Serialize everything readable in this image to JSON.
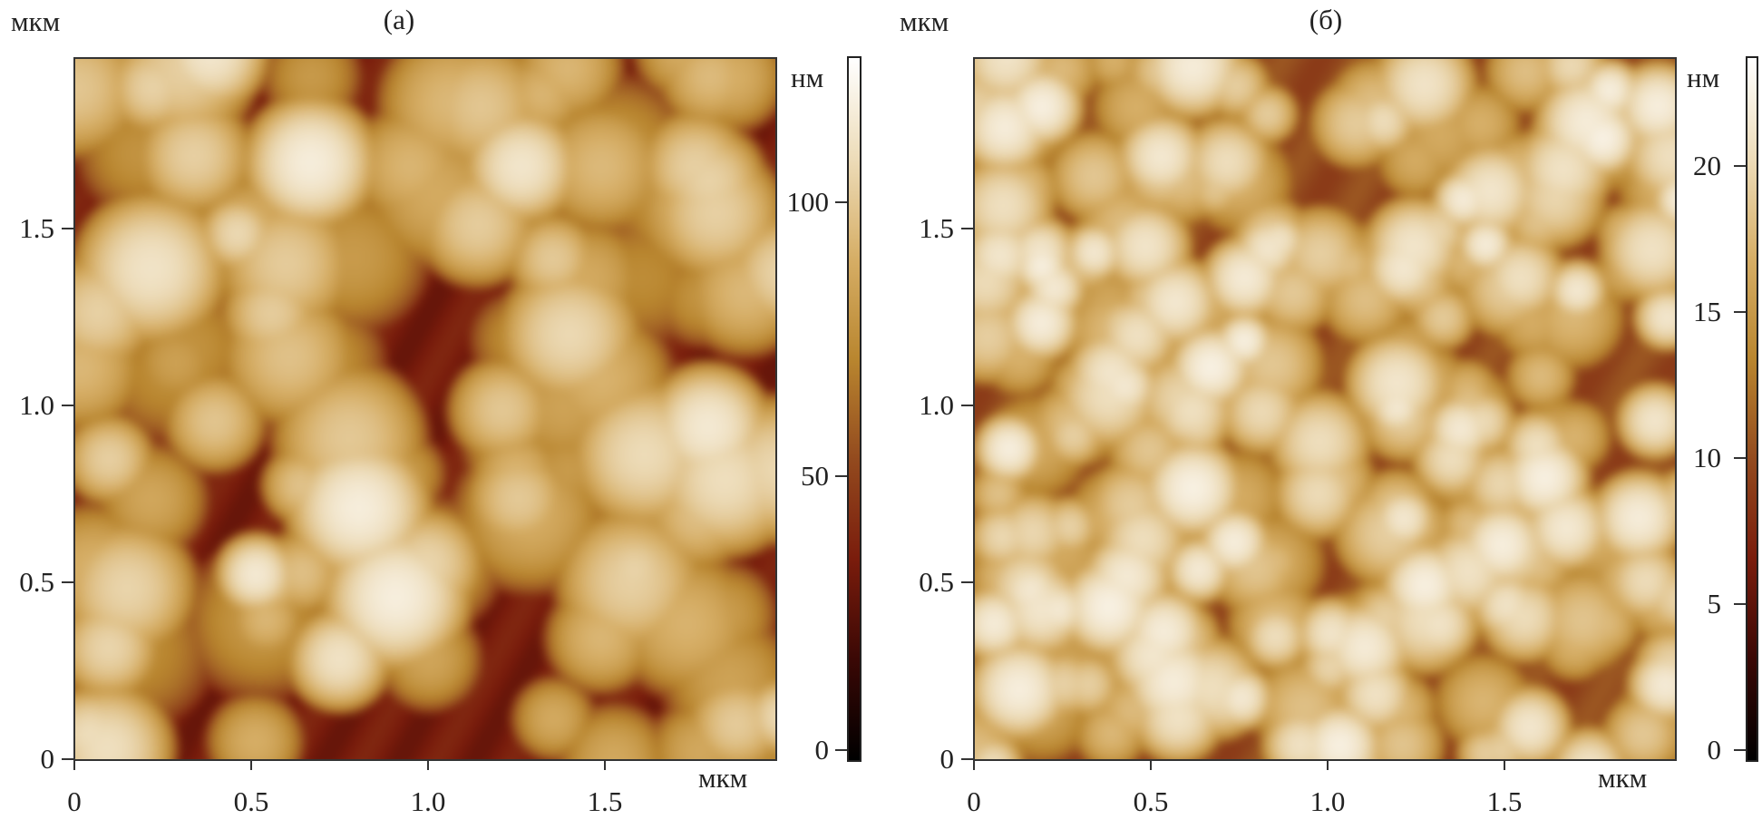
{
  "chart_data": [
    {
      "type": "heatmap",
      "panel_label": "(а)",
      "xlabel": "мкм",
      "ylabel": "мкм",
      "xlim": [
        0,
        1.98
      ],
      "ylim": [
        0,
        1.98
      ],
      "xticks": [
        "0",
        "0.5",
        "1.0",
        "1.5"
      ],
      "yticks": [
        "0",
        "0.5",
        "1.0",
        "1.5"
      ],
      "colorbar": {
        "label": "нм",
        "range": [
          0,
          128
        ],
        "ticks": [
          "0",
          "50",
          "100"
        ]
      },
      "grid": false
    },
    {
      "type": "heatmap",
      "panel_label": "(б)",
      "xlabel": "мкм",
      "ylabel": "мкм",
      "xlim": [
        0,
        1.98
      ],
      "ylim": [
        0,
        1.98
      ],
      "xticks": [
        "0",
        "0.5",
        "1.0",
        "1.5"
      ],
      "yticks": [
        "0",
        "0.5",
        "1.0",
        "1.5"
      ],
      "colorbar": {
        "label": "нм",
        "range": [
          0,
          24
        ],
        "ticks": [
          "0",
          "5",
          "10",
          "15",
          "20"
        ]
      },
      "grid": false
    }
  ],
  "colormap": [
    "#000000",
    "#3a0805",
    "#7a1c0c",
    "#934a1e",
    "#b9862f",
    "#d6ae66",
    "#eddcb9",
    "#ffffff"
  ]
}
